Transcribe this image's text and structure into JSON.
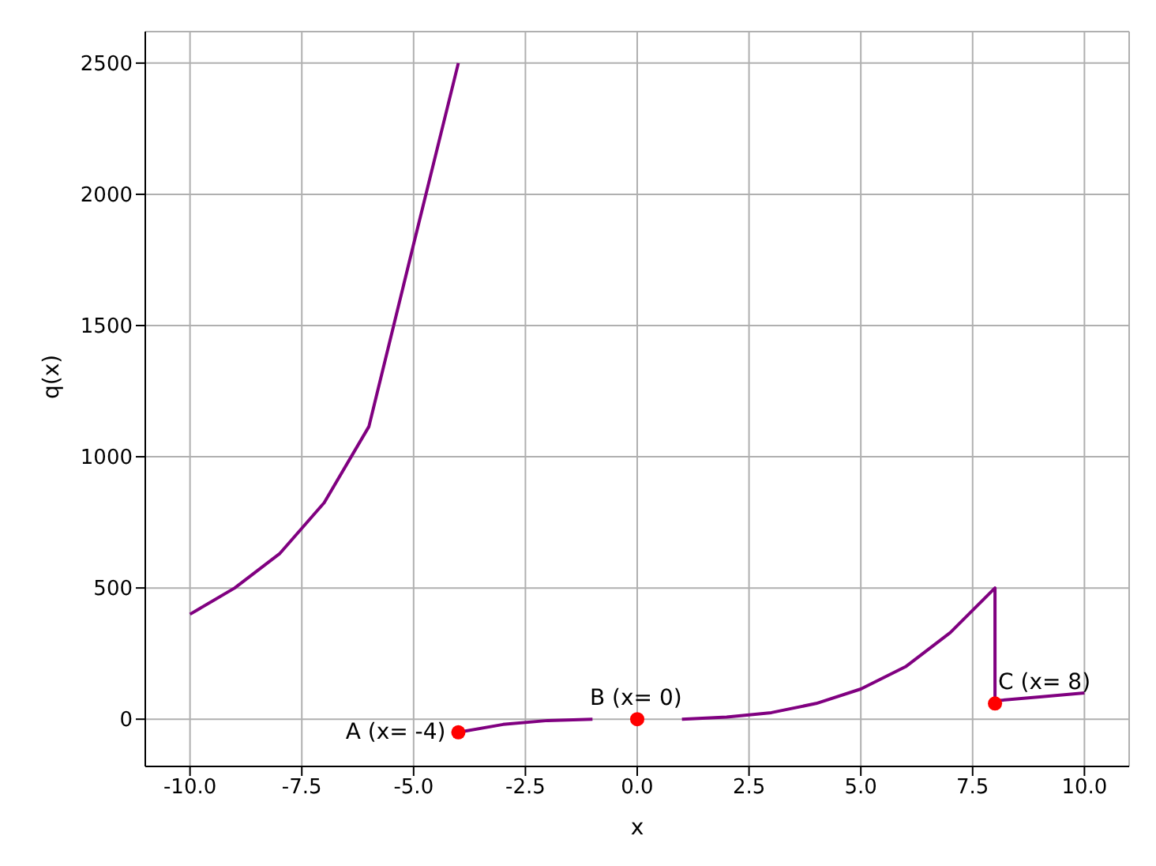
{
  "chart_data": {
    "type": "line",
    "xlabel": "x",
    "ylabel": "q(x)",
    "xlim": [
      -11,
      11
    ],
    "xticks": [
      {
        "value": -10,
        "label": "-10.0"
      },
      -7.5,
      {
        "value": -5,
        "label": "-5.0"
      },
      -2.5,
      {
        "value": 0,
        "label": "0.0"
      },
      2.5,
      {
        "value": 5,
        "label": "5.0"
      },
      7.5,
      {
        "value": 10,
        "label": "10.0"
      }
    ],
    "ylim": [
      -180,
      2620
    ],
    "yticks": [
      0,
      500,
      1000,
      1500,
      2000,
      2500
    ],
    "grid": true,
    "marker": "none",
    "line_style": "solid",
    "series": [
      {
        "color": "#800080",
        "x": [
          -10,
          -9,
          -8,
          -7,
          -6,
          -5,
          -4
        ],
        "values": [
          400,
          500,
          630,
          825,
          1115,
          1810,
          2500
        ]
      },
      {
        "color": "#800080",
        "x": [
          -4,
          -3,
          -2,
          -1
        ],
        "values": [
          -50,
          -20,
          -5,
          0
        ]
      },
      {
        "color": "#800080",
        "x": [
          1,
          2,
          3,
          4,
          5,
          6,
          7,
          8,
          8,
          9,
          10
        ],
        "values": [
          0,
          8,
          25,
          60,
          115,
          200,
          330,
          500,
          70,
          85,
          100
        ]
      },
      {
        "type": "scatter",
        "color": "#ff0000",
        "marker": "circle",
        "x": [
          -4,
          0,
          8
        ],
        "values": [
          -50,
          0,
          60
        ]
      }
    ],
    "annotations": [
      {
        "text": "A (x= -4)",
        "x": -4,
        "y": -50
      },
      {
        "text": "B (x= 0)",
        "x": 0,
        "y": 0
      },
      {
        "text": "C (x= 8)",
        "x": 8,
        "y": 60
      }
    ]
  }
}
